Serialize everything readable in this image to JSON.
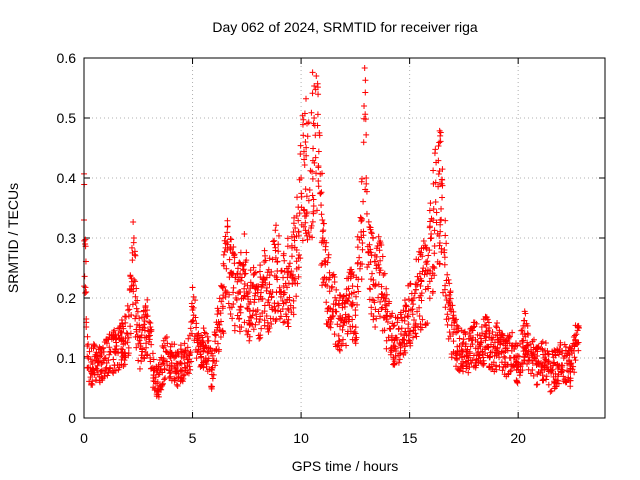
{
  "chart_data": {
    "type": "scatter",
    "title": "Day 062 of 2024, SRMTID for receiver riga",
    "xlabel": "GPS time / hours",
    "ylabel": "SRMTID / TECUs",
    "xlim": [
      0,
      24
    ],
    "ylim": [
      0,
      0.6
    ],
    "xticks": [
      0,
      5,
      10,
      15,
      20
    ],
    "xtick_labels": [
      "0",
      "5",
      "10",
      "15",
      "20"
    ],
    "yticks": [
      0,
      0.1,
      0.2,
      0.3,
      0.4,
      0.5,
      0.6
    ],
    "ytick_labels": [
      "0",
      "0.1",
      "0.2",
      "0.3",
      "0.4",
      "0.5",
      "0.6"
    ],
    "grid": true,
    "marker": "+",
    "series": [
      {
        "name": "SRMTID",
        "color": "#ff0000",
        "points_desc": "Approximate trend sampled from the scatter (hour, TECU)",
        "x": [
          0.0,
          0.05,
          0.1,
          0.15,
          0.2,
          0.4,
          0.6,
          0.8,
          1.0,
          1.2,
          1.5,
          1.8,
          2.0,
          2.2,
          2.3,
          2.4,
          2.6,
          2.8,
          3.0,
          3.2,
          3.4,
          3.6,
          3.8,
          4.0,
          4.3,
          4.6,
          4.9,
          5.0,
          5.3,
          5.6,
          5.9,
          6.2,
          6.4,
          6.6,
          6.8,
          7.0,
          7.2,
          7.4,
          7.6,
          7.8,
          8.0,
          8.3,
          8.6,
          8.9,
          9.2,
          9.5,
          9.8,
          10.0,
          10.2,
          10.4,
          10.6,
          10.7,
          10.8,
          11.0,
          11.2,
          11.5,
          11.8,
          12.0,
          12.2,
          12.5,
          12.8,
          12.9,
          13.0,
          13.2,
          13.4,
          13.6,
          13.8,
          14.0,
          14.3,
          14.6,
          14.9,
          15.2,
          15.5,
          15.8,
          16.0,
          16.2,
          16.4,
          16.6,
          16.8,
          17.0,
          17.3,
          17.6,
          17.9,
          18.2,
          18.5,
          18.8,
          19.1,
          19.4,
          19.7,
          20.0,
          20.3,
          20.6,
          20.9,
          21.2,
          21.5,
          21.8,
          22.1,
          22.4,
          22.6,
          22.8
        ],
        "y": [
          0.33,
          0.29,
          0.21,
          0.12,
          0.1,
          0.09,
          0.1,
          0.09,
          0.1,
          0.11,
          0.12,
          0.13,
          0.14,
          0.22,
          0.3,
          0.17,
          0.12,
          0.15,
          0.16,
          0.08,
          0.06,
          0.09,
          0.11,
          0.1,
          0.09,
          0.1,
          0.11,
          0.18,
          0.11,
          0.12,
          0.08,
          0.16,
          0.2,
          0.28,
          0.24,
          0.2,
          0.21,
          0.24,
          0.19,
          0.22,
          0.18,
          0.23,
          0.21,
          0.26,
          0.22,
          0.24,
          0.28,
          0.4,
          0.46,
          0.38,
          0.5,
          0.57,
          0.42,
          0.3,
          0.22,
          0.19,
          0.17,
          0.16,
          0.2,
          0.18,
          0.33,
          0.52,
          0.4,
          0.26,
          0.22,
          0.25,
          0.2,
          0.16,
          0.13,
          0.14,
          0.17,
          0.2,
          0.22,
          0.24,
          0.3,
          0.36,
          0.39,
          0.28,
          0.19,
          0.14,
          0.12,
          0.11,
          0.13,
          0.12,
          0.14,
          0.11,
          0.13,
          0.1,
          0.12,
          0.09,
          0.14,
          0.11,
          0.09,
          0.1,
          0.08,
          0.09,
          0.1,
          0.09,
          0.12,
          0.15
        ]
      }
    ]
  }
}
